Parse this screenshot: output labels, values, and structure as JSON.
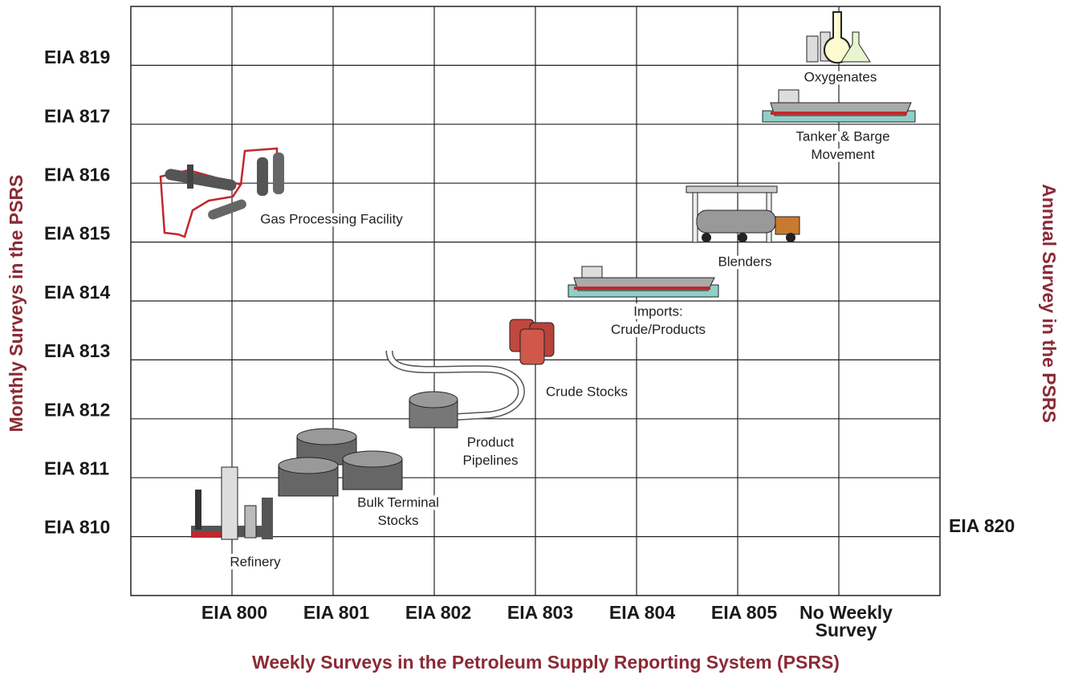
{
  "title": "Weekly Surveys in the  Petroleum Supply Reporting System (PSRS)",
  "left_axis_title": "Monthly Surveys in the PSRS",
  "right_axis_title": "Annual Survey in the PSRS",
  "row_labels": [
    "EIA 819",
    "EIA 817",
    "EIA 816",
    "EIA 815",
    "EIA 814",
    "EIA 813",
    "EIA 812",
    "EIA 811",
    "EIA 810"
  ],
  "right_label": "EIA 820",
  "column_labels": [
    [
      "EIA 800"
    ],
    [
      "EIA 801"
    ],
    [
      "EIA 802"
    ],
    [
      "EIA 803"
    ],
    [
      "EIA 804"
    ],
    [
      "EIA 805"
    ],
    [
      "No Weekly",
      "Survey"
    ]
  ],
  "nodes": [
    {
      "lines": [
        "Oxygenates"
      ]
    },
    {
      "lines": [
        "Tanker & Barge",
        "Movement"
      ]
    },
    {
      "lines": [
        "Gas Processing Facility"
      ]
    },
    {
      "lines": [
        "Blenders"
      ]
    },
    {
      "lines": [
        "Imports:",
        "Crude/Products"
      ]
    },
    {
      "lines": [
        "Crude Stocks"
      ]
    },
    {
      "lines": [
        "Product",
        "Pipelines"
      ]
    },
    {
      "lines": [
        "Bulk Terminal",
        "Stocks"
      ]
    },
    {
      "lines": [
        "Refinery"
      ]
    }
  ]
}
